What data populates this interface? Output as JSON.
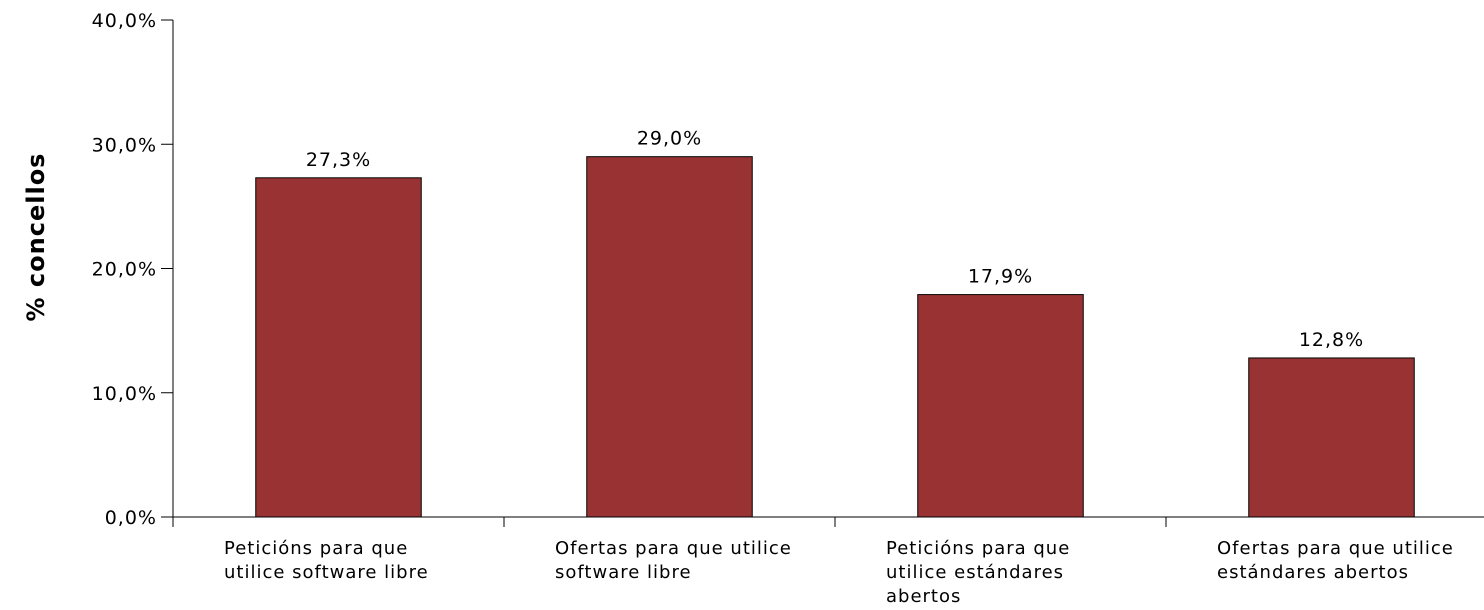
{
  "chart_data": {
    "type": "bar",
    "y_label": "% concellos",
    "categories": [
      "Peticións para que utilice software libre",
      "Ofertas para que utilice software libre",
      "Peticións para que utilice estándares abertos",
      "Ofertas para que utilice estándares abertos"
    ],
    "values": [
      27.3,
      29.0,
      17.9,
      12.8
    ],
    "value_labels": [
      "27,3%",
      "29,0%",
      "17,9%",
      "12,8%"
    ],
    "color": "#993333",
    "ylim": [
      0,
      40
    ],
    "yticks": [
      {
        "value": 0,
        "label": "0,0%"
      },
      {
        "value": 10,
        "label": "10,0%"
      },
      {
        "value": 20,
        "label": "20,0%"
      },
      {
        "value": 30,
        "label": "30,0%"
      },
      {
        "value": 40,
        "label": "40,0%"
      }
    ]
  }
}
